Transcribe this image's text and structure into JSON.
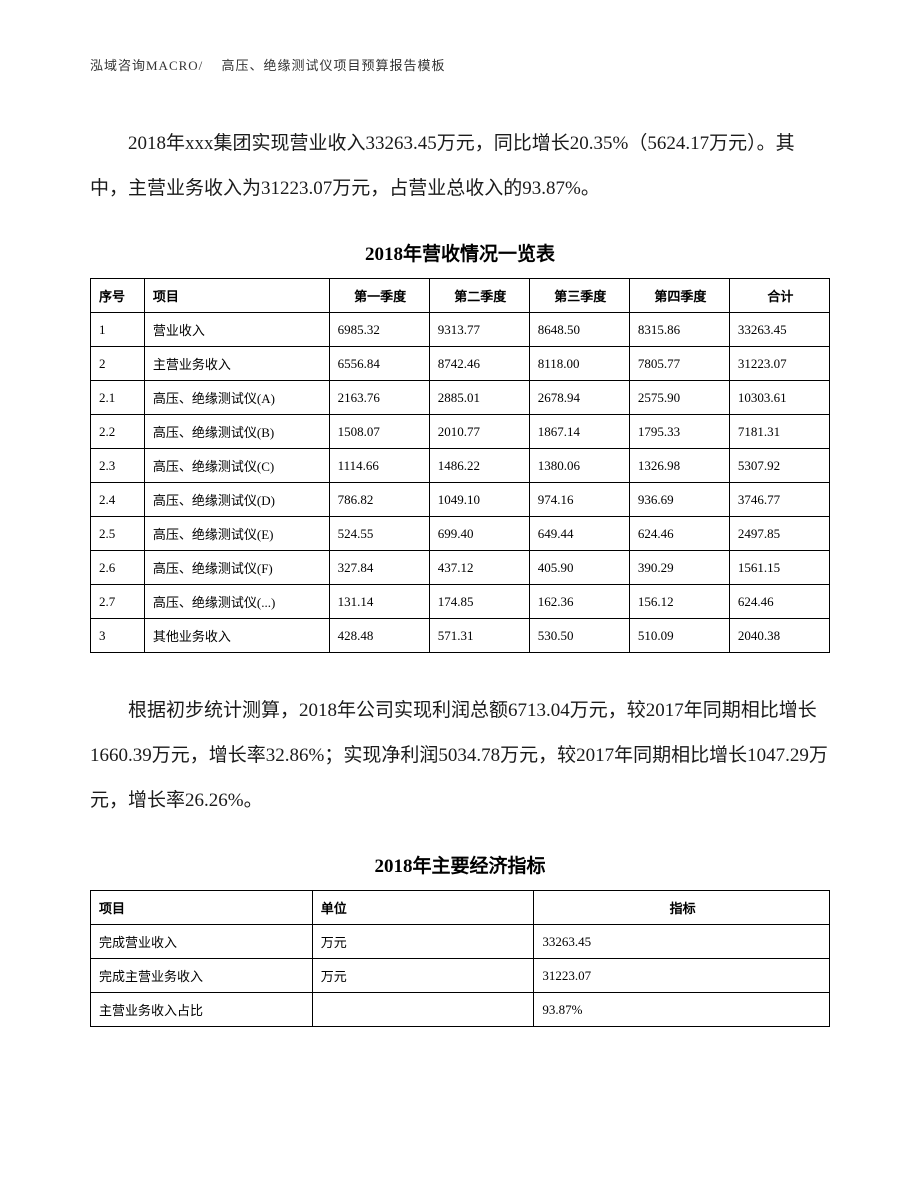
{
  "header": "泓域咨询MACRO/　 高压、绝缘测试仪项目预算报告模板",
  "paragraph1": "2018年xxx集团实现营业收入33263.45万元，同比增长20.35%（5624.17万元）。其中，主营业务收入为31223.07万元，占营业总收入的93.87%。",
  "table1": {
    "title": "2018年营收情况一览表",
    "columns": [
      "序号",
      "项目",
      "第一季度",
      "第二季度",
      "第三季度",
      "第四季度",
      "合计"
    ],
    "rows": [
      [
        "1",
        "营业收入",
        "6985.32",
        "9313.77",
        "8648.50",
        "8315.86",
        "33263.45"
      ],
      [
        "2",
        "主营业务收入",
        "6556.84",
        "8742.46",
        "8118.00",
        "7805.77",
        "31223.07"
      ],
      [
        "2.1",
        "高压、绝缘测试仪(A)",
        "2163.76",
        "2885.01",
        "2678.94",
        "2575.90",
        "10303.61"
      ],
      [
        "2.2",
        "高压、绝缘测试仪(B)",
        "1508.07",
        "2010.77",
        "1867.14",
        "1795.33",
        "7181.31"
      ],
      [
        "2.3",
        "高压、绝缘测试仪(C)",
        "1114.66",
        "1486.22",
        "1380.06",
        "1326.98",
        "5307.92"
      ],
      [
        "2.4",
        "高压、绝缘测试仪(D)",
        "786.82",
        "1049.10",
        "974.16",
        "936.69",
        "3746.77"
      ],
      [
        "2.5",
        "高压、绝缘测试仪(E)",
        "524.55",
        "699.40",
        "649.44",
        "624.46",
        "2497.85"
      ],
      [
        "2.6",
        "高压、绝缘测试仪(F)",
        "327.84",
        "437.12",
        "405.90",
        "390.29",
        "1561.15"
      ],
      [
        "2.7",
        "高压、绝缘测试仪(...)",
        "131.14",
        "174.85",
        "162.36",
        "156.12",
        "624.46"
      ],
      [
        "3",
        "其他业务收入",
        "428.48",
        "571.31",
        "530.50",
        "510.09",
        "2040.38"
      ]
    ]
  },
  "paragraph2": "根据初步统计测算，2018年公司实现利润总额6713.04万元，较2017年同期相比增长1660.39万元，增长率32.86%；实现净利润5034.78万元，较2017年同期相比增长1047.29万元，增长率26.26%。",
  "table2": {
    "title": "2018年主要经济指标",
    "columns": [
      "项目",
      "单位",
      "指标"
    ],
    "rows": [
      [
        "完成营业收入",
        "万元",
        "33263.45"
      ],
      [
        "完成主营业务收入",
        "万元",
        "31223.07"
      ],
      [
        "主营业务收入占比",
        "",
        "93.87%"
      ]
    ]
  }
}
